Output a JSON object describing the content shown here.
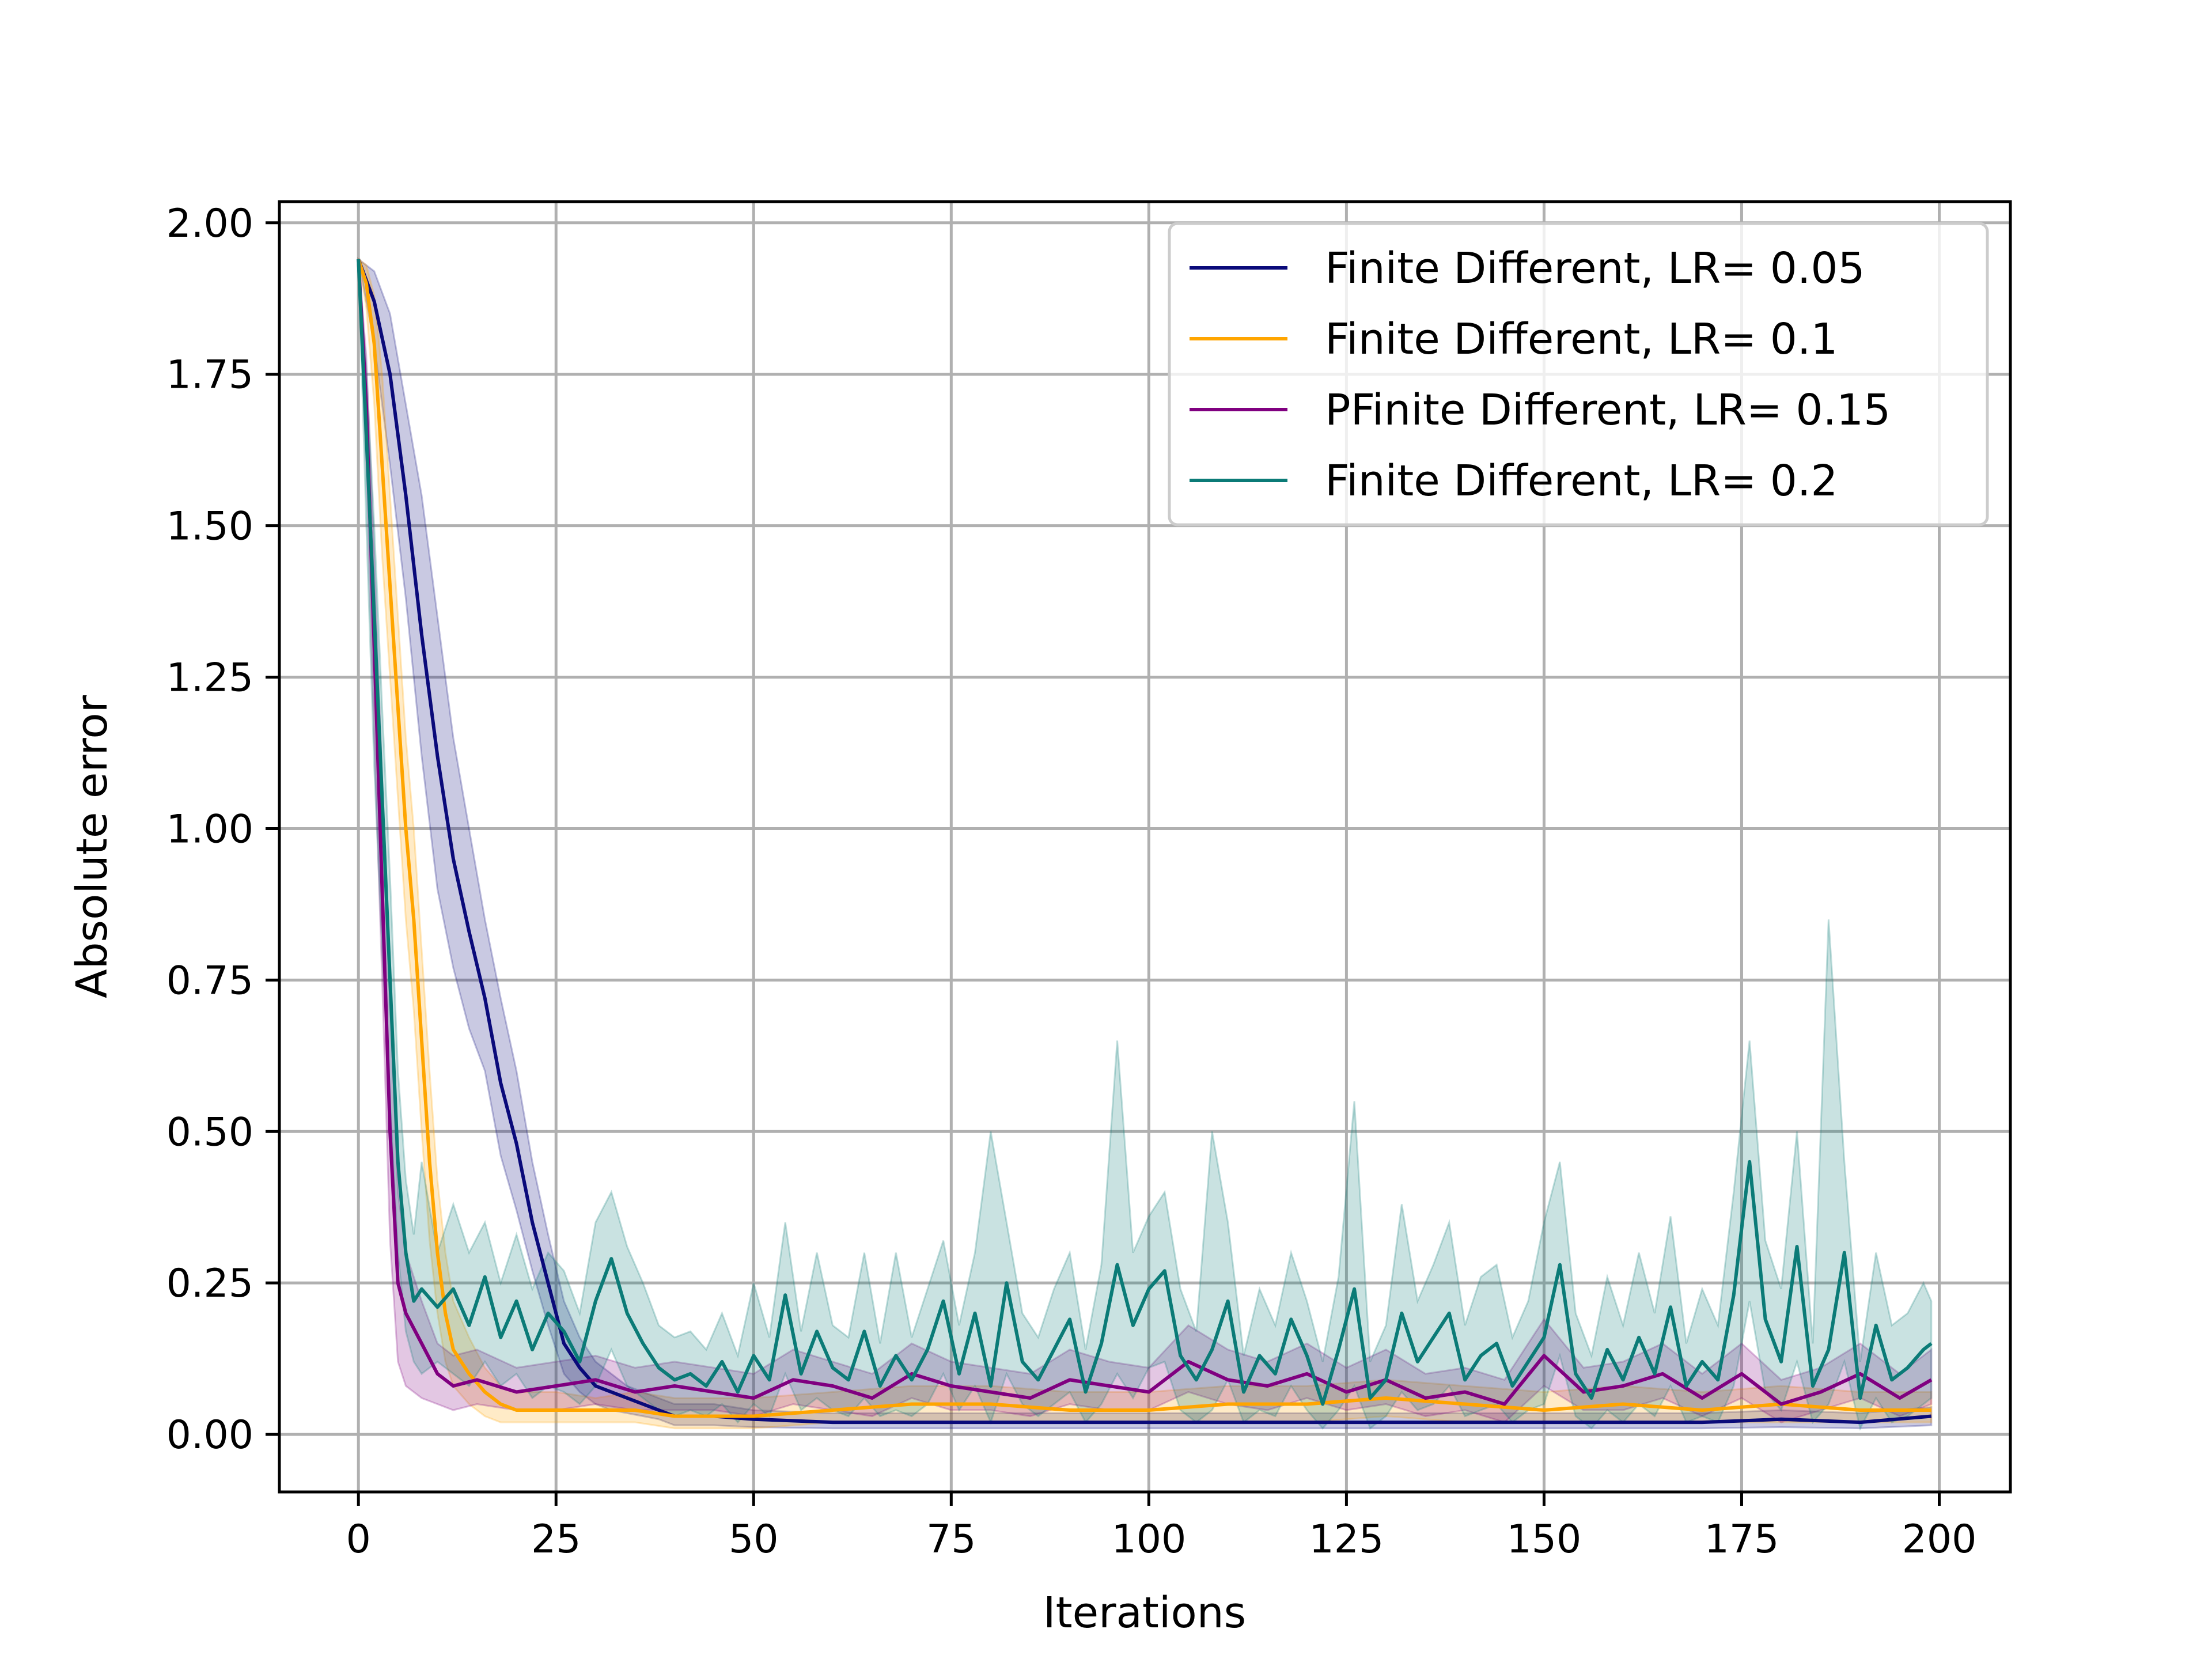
{
  "chart_data": {
    "type": "line",
    "title": "",
    "xlabel": "Iterations",
    "ylabel": "Absolute error",
    "xlim": [
      -10,
      209
    ],
    "ylim": [
      -0.095,
      2.035
    ],
    "xticks": [
      0,
      25,
      50,
      75,
      100,
      125,
      150,
      175,
      200
    ],
    "xtick_labels": [
      "0",
      "25",
      "50",
      "75",
      "100",
      "125",
      "150",
      "175",
      "200"
    ],
    "yticks": [
      0.0,
      0.25,
      0.5,
      0.75,
      1.0,
      1.25,
      1.5,
      1.75,
      2.0
    ],
    "ytick_labels": [
      "0.00",
      "0.25",
      "0.50",
      "0.75",
      "1.00",
      "1.25",
      "1.50",
      "1.75",
      "2.00"
    ],
    "grid": true,
    "legend_position": "upper right",
    "series": [
      {
        "name": "Finite Different, LR= 0.05",
        "color": "#0a0a7a",
        "x": [
          0,
          2,
          4,
          6,
          8,
          10,
          12,
          14,
          16,
          18,
          20,
          22,
          24,
          26,
          28,
          30,
          32,
          34,
          36,
          38,
          40,
          45,
          50,
          60,
          70,
          80,
          90,
          100,
          110,
          120,
          130,
          140,
          150,
          160,
          170,
          180,
          190,
          199
        ],
        "y": [
          1.94,
          1.87,
          1.75,
          1.55,
          1.32,
          1.12,
          0.95,
          0.83,
          0.72,
          0.58,
          0.48,
          0.35,
          0.25,
          0.15,
          0.11,
          0.08,
          0.07,
          0.06,
          0.05,
          0.04,
          0.03,
          0.03,
          0.025,
          0.02,
          0.02,
          0.02,
          0.02,
          0.02,
          0.02,
          0.02,
          0.02,
          0.02,
          0.02,
          0.02,
          0.02,
          0.025,
          0.02,
          0.03
        ],
        "band_upper": [
          1.94,
          1.92,
          1.85,
          1.7,
          1.55,
          1.35,
          1.15,
          1.0,
          0.85,
          0.72,
          0.6,
          0.45,
          0.33,
          0.22,
          0.16,
          0.12,
          0.1,
          0.08,
          0.07,
          0.06,
          0.05,
          0.05,
          0.04,
          0.035,
          0.035,
          0.035,
          0.035,
          0.035,
          0.035,
          0.035,
          0.035,
          0.035,
          0.035,
          0.035,
          0.035,
          0.04,
          0.035,
          0.045
        ],
        "band_lower": [
          1.94,
          1.8,
          1.6,
          1.38,
          1.12,
          0.9,
          0.77,
          0.67,
          0.6,
          0.46,
          0.37,
          0.27,
          0.18,
          0.1,
          0.07,
          0.05,
          0.04,
          0.035,
          0.03,
          0.025,
          0.015,
          0.015,
          0.012,
          0.01,
          0.01,
          0.01,
          0.01,
          0.01,
          0.01,
          0.01,
          0.01,
          0.01,
          0.01,
          0.01,
          0.01,
          0.012,
          0.01,
          0.015
        ]
      },
      {
        "name": "Finite Different, LR= 0.1",
        "color": "#ffa500",
        "x": [
          0,
          1,
          2,
          3,
          4,
          5,
          6,
          7,
          8,
          9,
          10,
          11,
          12,
          14,
          16,
          18,
          20,
          25,
          30,
          35,
          40,
          50,
          60,
          70,
          80,
          90,
          100,
          110,
          120,
          130,
          140,
          150,
          160,
          170,
          180,
          190,
          199
        ],
        "y": [
          1.94,
          1.9,
          1.8,
          1.6,
          1.4,
          1.2,
          1.0,
          0.85,
          0.65,
          0.45,
          0.3,
          0.2,
          0.14,
          0.1,
          0.07,
          0.05,
          0.04,
          0.04,
          0.04,
          0.04,
          0.03,
          0.03,
          0.04,
          0.05,
          0.05,
          0.04,
          0.04,
          0.05,
          0.05,
          0.06,
          0.05,
          0.04,
          0.05,
          0.04,
          0.05,
          0.04,
          0.04
        ],
        "band_upper": [
          1.94,
          1.93,
          1.88,
          1.75,
          1.55,
          1.35,
          1.15,
          1.0,
          0.8,
          0.6,
          0.42,
          0.3,
          0.22,
          0.16,
          0.11,
          0.08,
          0.07,
          0.07,
          0.06,
          0.07,
          0.06,
          0.06,
          0.07,
          0.08,
          0.08,
          0.07,
          0.07,
          0.08,
          0.08,
          0.09,
          0.08,
          0.07,
          0.08,
          0.07,
          0.08,
          0.07,
          0.07
        ],
        "band_lower": [
          1.94,
          1.86,
          1.7,
          1.45,
          1.25,
          1.05,
          0.85,
          0.7,
          0.5,
          0.32,
          0.2,
          0.12,
          0.08,
          0.05,
          0.03,
          0.02,
          0.02,
          0.02,
          0.02,
          0.02,
          0.01,
          0.01,
          0.02,
          0.02,
          0.02,
          0.02,
          0.02,
          0.02,
          0.02,
          0.03,
          0.02,
          0.02,
          0.02,
          0.02,
          0.02,
          0.02,
          0.02
        ]
      },
      {
        "name": "PFinite Different, LR= 0.15",
        "color": "#800080",
        "x": [
          0,
          1,
          2,
          3,
          4,
          5,
          6,
          8,
          10,
          12,
          15,
          20,
          25,
          30,
          35,
          40,
          45,
          50,
          55,
          60,
          65,
          70,
          75,
          80,
          85,
          90,
          95,
          100,
          105,
          110,
          115,
          120,
          125,
          130,
          135,
          140,
          145,
          150,
          155,
          160,
          165,
          170,
          175,
          180,
          185,
          190,
          195,
          199
        ],
        "y": [
          1.94,
          1.7,
          1.3,
          0.9,
          0.5,
          0.25,
          0.2,
          0.15,
          0.1,
          0.08,
          0.09,
          0.07,
          0.08,
          0.09,
          0.07,
          0.08,
          0.07,
          0.06,
          0.09,
          0.08,
          0.06,
          0.1,
          0.08,
          0.07,
          0.06,
          0.09,
          0.08,
          0.07,
          0.12,
          0.09,
          0.08,
          0.1,
          0.07,
          0.09,
          0.06,
          0.07,
          0.05,
          0.13,
          0.07,
          0.08,
          0.1,
          0.06,
          0.1,
          0.05,
          0.07,
          0.1,
          0.06,
          0.09
        ],
        "band_upper": [
          1.94,
          1.78,
          1.45,
          1.08,
          0.72,
          0.4,
          0.3,
          0.22,
          0.15,
          0.13,
          0.14,
          0.11,
          0.12,
          0.13,
          0.11,
          0.12,
          0.11,
          0.1,
          0.14,
          0.12,
          0.1,
          0.15,
          0.12,
          0.11,
          0.1,
          0.14,
          0.12,
          0.11,
          0.18,
          0.14,
          0.12,
          0.15,
          0.11,
          0.14,
          0.1,
          0.11,
          0.09,
          0.19,
          0.11,
          0.12,
          0.15,
          0.1,
          0.15,
          0.09,
          0.11,
          0.15,
          0.1,
          0.14
        ],
        "band_lower": [
          1.94,
          1.6,
          1.15,
          0.75,
          0.32,
          0.12,
          0.08,
          0.06,
          0.05,
          0.04,
          0.05,
          0.04,
          0.04,
          0.05,
          0.04,
          0.04,
          0.04,
          0.03,
          0.05,
          0.04,
          0.03,
          0.06,
          0.04,
          0.04,
          0.03,
          0.05,
          0.04,
          0.04,
          0.07,
          0.05,
          0.04,
          0.06,
          0.04,
          0.05,
          0.03,
          0.04,
          0.02,
          0.08,
          0.04,
          0.04,
          0.06,
          0.03,
          0.06,
          0.02,
          0.04,
          0.06,
          0.03,
          0.05
        ]
      },
      {
        "name": "Finite Different, LR= 0.2",
        "color": "#0b7b77",
        "x": [
          0,
          1,
          2,
          3,
          4,
          5,
          6,
          7,
          8,
          10,
          12,
          14,
          16,
          18,
          20,
          22,
          24,
          26,
          28,
          30,
          32,
          34,
          36,
          38,
          40,
          42,
          44,
          46,
          48,
          50,
          52,
          54,
          56,
          58,
          60,
          62,
          64,
          66,
          68,
          70,
          72,
          74,
          76,
          78,
          80,
          82,
          84,
          86,
          88,
          90,
          92,
          94,
          96,
          98,
          100,
          102,
          104,
          106,
          108,
          110,
          112,
          114,
          116,
          118,
          120,
          122,
          124,
          126,
          128,
          130,
          132,
          134,
          136,
          138,
          140,
          142,
          144,
          146,
          148,
          150,
          152,
          154,
          156,
          158,
          160,
          162,
          164,
          166,
          168,
          170,
          172,
          174,
          176,
          178,
          180,
          182,
          184,
          186,
          188,
          190,
          192,
          194,
          196,
          198,
          199
        ],
        "y": [
          1.94,
          1.65,
          1.35,
          1.05,
          0.75,
          0.45,
          0.3,
          0.22,
          0.24,
          0.21,
          0.24,
          0.18,
          0.26,
          0.16,
          0.22,
          0.14,
          0.2,
          0.17,
          0.12,
          0.22,
          0.29,
          0.2,
          0.15,
          0.11,
          0.09,
          0.1,
          0.08,
          0.12,
          0.07,
          0.13,
          0.09,
          0.23,
          0.1,
          0.17,
          0.11,
          0.09,
          0.17,
          0.08,
          0.13,
          0.09,
          0.14,
          0.22,
          0.1,
          0.2,
          0.08,
          0.25,
          0.12,
          0.09,
          0.14,
          0.19,
          0.07,
          0.15,
          0.28,
          0.18,
          0.24,
          0.27,
          0.13,
          0.09,
          0.14,
          0.22,
          0.07,
          0.13,
          0.1,
          0.19,
          0.13,
          0.05,
          0.14,
          0.24,
          0.06,
          0.09,
          0.2,
          0.12,
          0.16,
          0.2,
          0.09,
          0.13,
          0.15,
          0.08,
          0.12,
          0.16,
          0.28,
          0.1,
          0.06,
          0.14,
          0.09,
          0.16,
          0.1,
          0.21,
          0.08,
          0.12,
          0.09,
          0.23,
          0.45,
          0.19,
          0.12,
          0.31,
          0.08,
          0.14,
          0.3,
          0.06,
          0.18,
          0.09,
          0.11,
          0.14,
          0.15
        ],
        "band_upper": [
          1.94,
          1.76,
          1.5,
          1.2,
          0.92,
          0.6,
          0.42,
          0.33,
          0.45,
          0.3,
          0.38,
          0.3,
          0.35,
          0.25,
          0.33,
          0.24,
          0.3,
          0.27,
          0.2,
          0.35,
          0.4,
          0.31,
          0.25,
          0.18,
          0.16,
          0.17,
          0.14,
          0.2,
          0.13,
          0.25,
          0.16,
          0.35,
          0.17,
          0.3,
          0.18,
          0.16,
          0.3,
          0.15,
          0.3,
          0.16,
          0.24,
          0.32,
          0.18,
          0.3,
          0.5,
          0.35,
          0.2,
          0.16,
          0.24,
          0.3,
          0.14,
          0.28,
          0.65,
          0.3,
          0.36,
          0.4,
          0.24,
          0.17,
          0.5,
          0.35,
          0.13,
          0.24,
          0.18,
          0.3,
          0.22,
          0.12,
          0.26,
          0.55,
          0.12,
          0.18,
          0.38,
          0.22,
          0.28,
          0.35,
          0.18,
          0.26,
          0.28,
          0.16,
          0.22,
          0.35,
          0.45,
          0.2,
          0.13,
          0.26,
          0.18,
          0.3,
          0.2,
          0.36,
          0.15,
          0.24,
          0.18,
          0.4,
          0.65,
          0.32,
          0.24,
          0.5,
          0.15,
          0.85,
          0.45,
          0.12,
          0.3,
          0.18,
          0.2,
          0.25,
          0.22
        ],
        "band_lower": [
          1.94,
          1.5,
          1.1,
          0.8,
          0.55,
          0.3,
          0.17,
          0.12,
          0.1,
          0.12,
          0.1,
          0.08,
          0.12,
          0.08,
          0.1,
          0.06,
          0.08,
          0.07,
          0.05,
          0.08,
          0.14,
          0.08,
          0.06,
          0.04,
          0.03,
          0.04,
          0.03,
          0.05,
          0.02,
          0.05,
          0.03,
          0.1,
          0.04,
          0.06,
          0.04,
          0.03,
          0.06,
          0.03,
          0.04,
          0.03,
          0.05,
          0.1,
          0.04,
          0.08,
          0.02,
          0.1,
          0.05,
          0.03,
          0.05,
          0.07,
          0.02,
          0.05,
          0.1,
          0.06,
          0.11,
          0.12,
          0.04,
          0.02,
          0.04,
          0.09,
          0.02,
          0.04,
          0.03,
          0.08,
          0.04,
          0.01,
          0.04,
          0.08,
          0.01,
          0.03,
          0.07,
          0.04,
          0.05,
          0.08,
          0.03,
          0.04,
          0.05,
          0.02,
          0.04,
          0.05,
          0.13,
          0.03,
          0.01,
          0.04,
          0.02,
          0.05,
          0.03,
          0.08,
          0.02,
          0.03,
          0.02,
          0.08,
          0.22,
          0.07,
          0.04,
          0.12,
          0.02,
          0.05,
          0.12,
          0.01,
          0.06,
          0.02,
          0.03,
          0.05,
          0.06
        ]
      }
    ]
  }
}
